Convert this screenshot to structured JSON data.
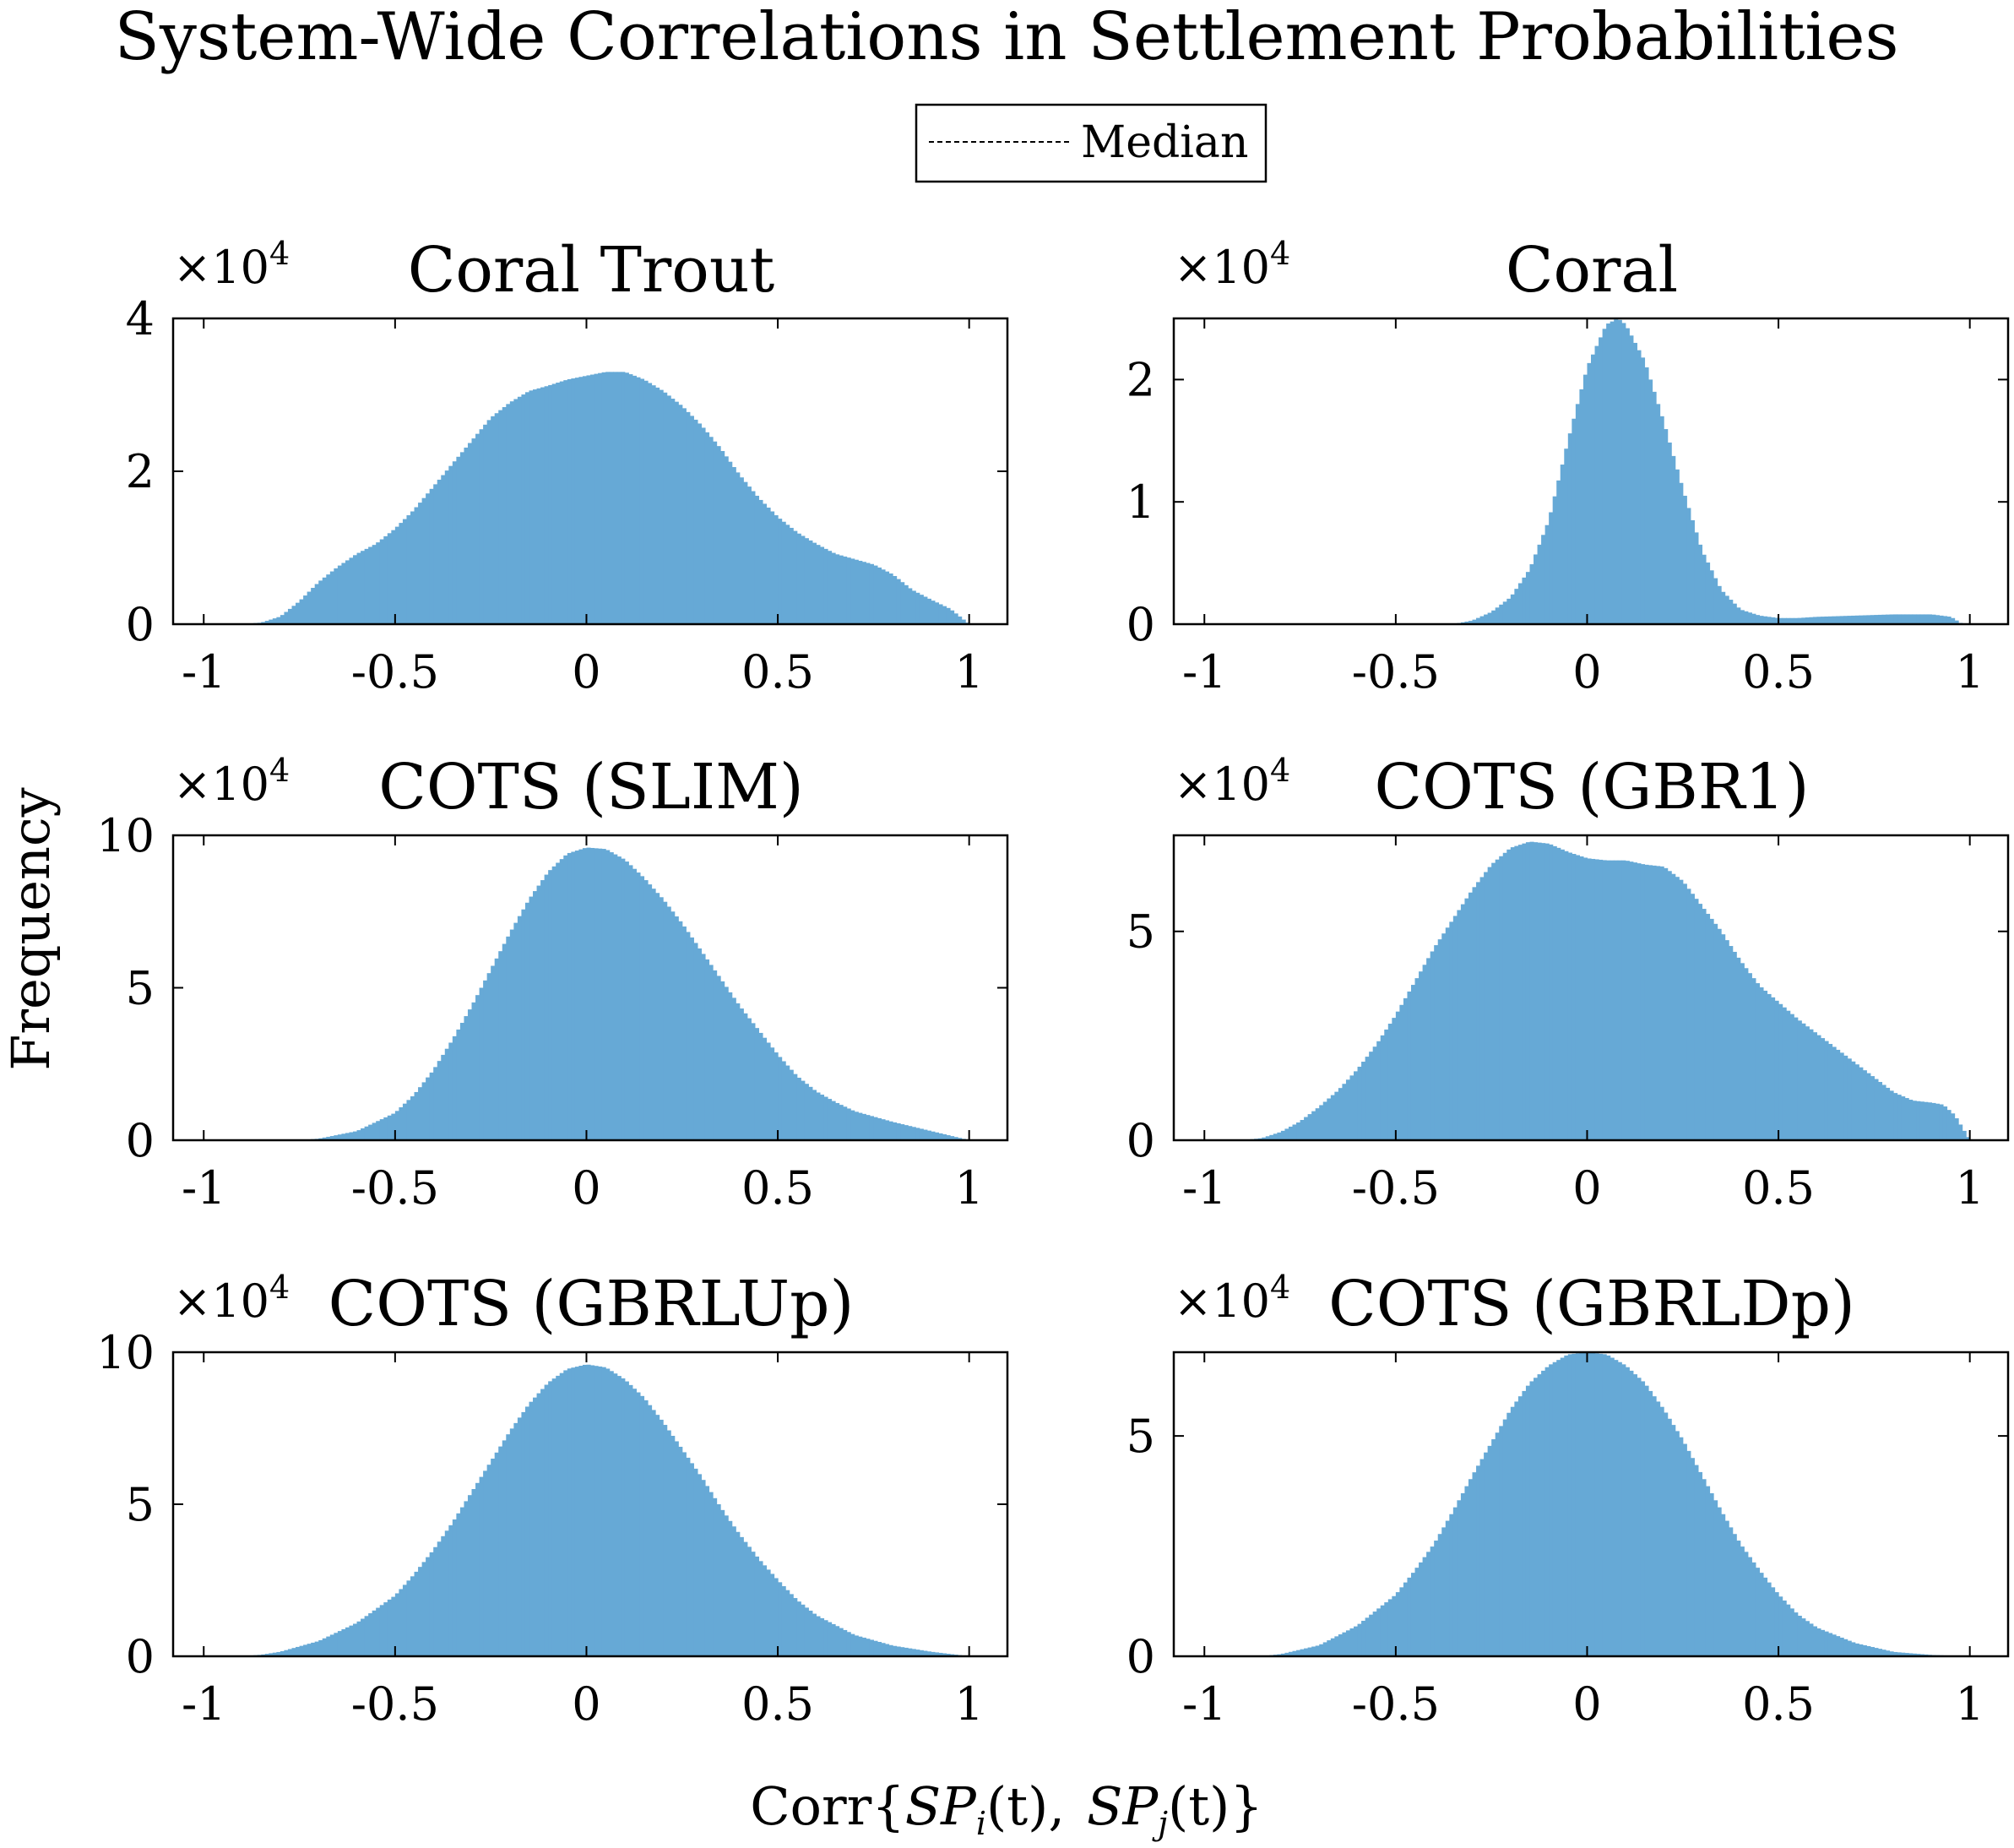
{
  "title": "System-Wide Correlations in Settlement Probabilities",
  "legend": {
    "label": "Median",
    "line_style": "dotted"
  },
  "xlabel": "Corr{SP_i(t), SP_j(t)}",
  "xlabel_parts": {
    "prefix": "Corr{",
    "sp1_base": "SP",
    "sp1_sub": "i",
    "sp1_arg": "(t),",
    "sp2_base": "SP",
    "sp2_sub": "j",
    "sp2_arg": "(t)",
    "suffix": "}"
  },
  "ylabel": "Frequency",
  "exponent_label": {
    "times": "×10",
    "power": "4"
  },
  "colors": {
    "bar": "#66a9d6",
    "axis": "#000000"
  },
  "chart_data": [
    {
      "type": "bar",
      "title": "Coral Trout",
      "xlim": [
        -1.08,
        1.1
      ],
      "ylim": [
        0,
        4
      ],
      "xticks": [
        -1,
        -0.5,
        0,
        0.5,
        1
      ],
      "xtick_labels": [
        "-1",
        "-0.5",
        "0",
        "0.5",
        "1"
      ],
      "yticks": [
        0,
        2,
        4
      ],
      "ytick_labels": [
        "0",
        "2",
        "4"
      ],
      "y_multiplier": 10000,
      "x": [
        -0.9,
        -0.85,
        -0.8,
        -0.75,
        -0.7,
        -0.65,
        -0.6,
        -0.55,
        -0.5,
        -0.45,
        -0.4,
        -0.35,
        -0.3,
        -0.25,
        -0.2,
        -0.15,
        -0.1,
        -0.05,
        0,
        0.05,
        0.1,
        0.15,
        0.2,
        0.25,
        0.3,
        0.35,
        0.4,
        0.45,
        0.5,
        0.55,
        0.6,
        0.65,
        0.7,
        0.75,
        0.8,
        0.85,
        0.9,
        0.95,
        1.0
      ],
      "values": [
        0,
        0.02,
        0.1,
        0.3,
        0.55,
        0.75,
        0.92,
        1.05,
        1.25,
        1.5,
        1.8,
        2.1,
        2.4,
        2.7,
        2.9,
        3.05,
        3.12,
        3.2,
        3.25,
        3.3,
        3.3,
        3.2,
        3.05,
        2.85,
        2.6,
        2.3,
        1.95,
        1.65,
        1.4,
        1.2,
        1.05,
        0.92,
        0.85,
        0.78,
        0.65,
        0.45,
        0.32,
        0.2,
        0
      ]
    },
    {
      "type": "bar",
      "title": "Coral",
      "xlim": [
        -1.08,
        1.1
      ],
      "ylim": [
        0,
        2.5
      ],
      "xticks": [
        -1,
        -0.5,
        0,
        0.5,
        1
      ],
      "xtick_labels": [
        "-1",
        "-0.5",
        "0",
        "0.5",
        "1"
      ],
      "yticks": [
        0,
        1,
        2
      ],
      "ytick_labels": [
        "0",
        "1",
        "2"
      ],
      "y_multiplier": 10000,
      "x": [
        -0.35,
        -0.3,
        -0.25,
        -0.2,
        -0.15,
        -0.1,
        -0.05,
        0,
        0.05,
        0.08,
        0.1,
        0.15,
        0.2,
        0.25,
        0.3,
        0.35,
        0.4,
        0.45,
        0.5,
        0.55,
        0.6,
        0.7,
        0.8,
        0.9,
        0.95,
        0.98
      ],
      "values": [
        0,
        0.03,
        0.1,
        0.22,
        0.45,
        0.85,
        1.5,
        2.1,
        2.45,
        2.5,
        2.45,
        2.15,
        1.65,
        1.1,
        0.6,
        0.28,
        0.12,
        0.07,
        0.05,
        0.05,
        0.06,
        0.07,
        0.08,
        0.08,
        0.06,
        0
      ]
    },
    {
      "type": "bar",
      "title": "COTS (SLIM)",
      "xlim": [
        -1.08,
        1.1
      ],
      "ylim": [
        0,
        10
      ],
      "xticks": [
        -1,
        -0.5,
        0,
        0.5,
        1
      ],
      "xtick_labels": [
        "-1",
        "-0.5",
        "0",
        "0.5",
        "1"
      ],
      "yticks": [
        0,
        5,
        10
      ],
      "ytick_labels": [
        "0",
        "5",
        "10"
      ],
      "y_multiplier": 10000,
      "x": [
        -0.75,
        -0.7,
        -0.6,
        -0.5,
        -0.45,
        -0.4,
        -0.35,
        -0.3,
        -0.25,
        -0.2,
        -0.15,
        -0.1,
        -0.05,
        0,
        0.05,
        0.1,
        0.15,
        0.2,
        0.25,
        0.3,
        0.35,
        0.4,
        0.45,
        0.5,
        0.55,
        0.6,
        0.65,
        0.7,
        0.8,
        0.9,
        1.0
      ],
      "values": [
        0,
        0.05,
        0.3,
        0.9,
        1.5,
        2.3,
        3.3,
        4.4,
        5.6,
        6.8,
        7.9,
        8.8,
        9.4,
        9.6,
        9.55,
        9.2,
        8.6,
        7.9,
        7.1,
        6.2,
        5.3,
        4.4,
        3.6,
        2.8,
        2.1,
        1.6,
        1.25,
        0.95,
        0.6,
        0.3,
        0
      ]
    },
    {
      "type": "bar",
      "title": "COTS (GBR1)",
      "xlim": [
        -1.08,
        1.1
      ],
      "ylim": [
        0,
        7.3
      ],
      "xticks": [
        -1,
        -0.5,
        0,
        0.5,
        1
      ],
      "xtick_labels": [
        "-1",
        "-0.5",
        "0",
        "0.5",
        "1"
      ],
      "yticks": [
        0,
        5
      ],
      "ytick_labels": [
        "0",
        "5"
      ],
      "y_multiplier": 10000,
      "x": [
        -0.9,
        -0.85,
        -0.8,
        -0.75,
        -0.7,
        -0.65,
        -0.6,
        -0.55,
        -0.5,
        -0.45,
        -0.4,
        -0.35,
        -0.3,
        -0.25,
        -0.2,
        -0.15,
        -0.1,
        -0.05,
        0,
        0.05,
        0.1,
        0.15,
        0.2,
        0.25,
        0.3,
        0.35,
        0.4,
        0.45,
        0.5,
        0.55,
        0.6,
        0.65,
        0.7,
        0.75,
        0.8,
        0.85,
        0.9,
        0.93,
        0.96,
        0.98,
        1.0
      ],
      "values": [
        0,
        0.05,
        0.2,
        0.45,
        0.8,
        1.2,
        1.7,
        2.3,
        3.0,
        3.8,
        4.6,
        5.3,
        6.0,
        6.6,
        7.0,
        7.15,
        7.1,
        6.9,
        6.75,
        6.7,
        6.7,
        6.6,
        6.55,
        6.2,
        5.6,
        5.0,
        4.3,
        3.7,
        3.3,
        2.9,
        2.55,
        2.2,
        1.85,
        1.5,
        1.15,
        0.95,
        0.9,
        0.85,
        0.6,
        0.3,
        0
      ]
    },
    {
      "type": "bar",
      "title": "COTS (GBRLUp)",
      "xlim": [
        -1.08,
        1.1
      ],
      "ylim": [
        0,
        10
      ],
      "xticks": [
        -1,
        -0.5,
        0,
        0.5,
        1
      ],
      "xtick_labels": [
        "-1",
        "-0.5",
        "0",
        "0.5",
        "1"
      ],
      "yticks": [
        0,
        5,
        10
      ],
      "ytick_labels": [
        "0",
        "5",
        "10"
      ],
      "y_multiplier": 10000,
      "x": [
        -0.9,
        -0.85,
        -0.8,
        -0.7,
        -0.6,
        -0.5,
        -0.45,
        -0.4,
        -0.35,
        -0.3,
        -0.25,
        -0.2,
        -0.15,
        -0.1,
        -0.05,
        0,
        0.05,
        0.1,
        0.15,
        0.2,
        0.25,
        0.3,
        0.35,
        0.4,
        0.45,
        0.5,
        0.55,
        0.6,
        0.7,
        0.8,
        0.9,
        1.0
      ],
      "values": [
        0,
        0.05,
        0.15,
        0.5,
        1.1,
        2.0,
        2.7,
        3.5,
        4.4,
        5.4,
        6.4,
        7.4,
        8.3,
        9.0,
        9.45,
        9.6,
        9.5,
        9.1,
        8.5,
        7.7,
        6.8,
        5.9,
        4.9,
        4.0,
        3.2,
        2.5,
        1.85,
        1.35,
        0.7,
        0.35,
        0.15,
        0
      ]
    },
    {
      "type": "bar",
      "title": "COTS (GBRLDp)",
      "xlim": [
        -1.08,
        1.1
      ],
      "ylim": [
        0,
        6.9
      ],
      "xticks": [
        -1,
        -0.5,
        0,
        0.5,
        1
      ],
      "xtick_labels": [
        "-1",
        "-0.5",
        "0",
        "0.5",
        "1"
      ],
      "yticks": [
        0,
        5
      ],
      "ytick_labels": [
        "0",
        "5"
      ],
      "y_multiplier": 10000,
      "x": [
        -0.85,
        -0.8,
        -0.7,
        -0.6,
        -0.5,
        -0.45,
        -0.4,
        -0.35,
        -0.3,
        -0.25,
        -0.2,
        -0.15,
        -0.1,
        -0.05,
        0,
        0.05,
        0.1,
        0.15,
        0.2,
        0.25,
        0.3,
        0.35,
        0.4,
        0.45,
        0.5,
        0.55,
        0.6,
        0.7,
        0.8,
        0.9,
        1.0
      ],
      "values": [
        0,
        0.05,
        0.25,
        0.7,
        1.4,
        1.95,
        2.55,
        3.3,
        4.1,
        4.85,
        5.6,
        6.2,
        6.6,
        6.85,
        6.9,
        6.85,
        6.6,
        6.2,
        5.6,
        4.9,
        4.1,
        3.3,
        2.55,
        1.95,
        1.4,
        0.95,
        0.65,
        0.3,
        0.1,
        0.03,
        0
      ]
    }
  ]
}
